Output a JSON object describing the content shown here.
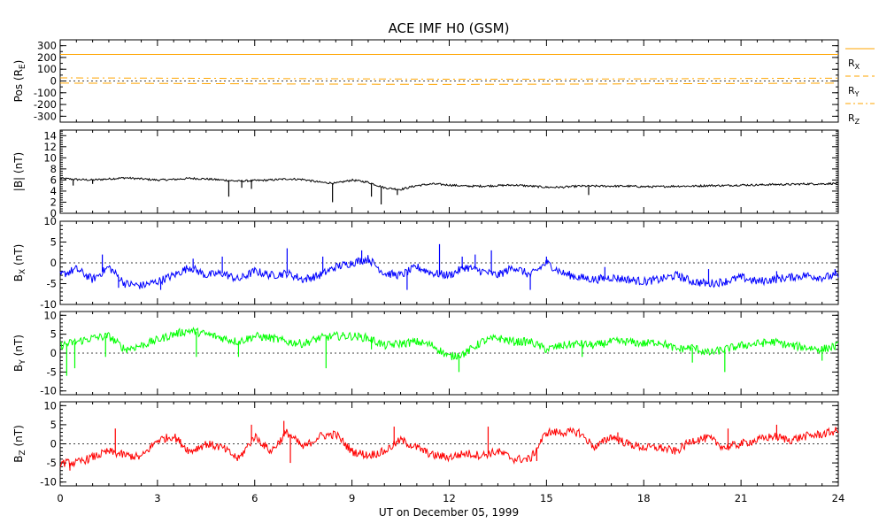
{
  "chart_data": {
    "type": "line",
    "title": "ACE IMF H0 (GSM)",
    "xlabel": "UT on December 05, 1999",
    "xlim": [
      0,
      24
    ],
    "xticks": [
      "0",
      "3",
      "6",
      "9",
      "12",
      "15",
      "18",
      "21",
      "24"
    ],
    "colors": {
      "background": "#ffffff",
      "axes": "#000000",
      "position": "#ffa500",
      "magnitude": "#000000",
      "bx": "#0000ff",
      "by": "#00ff00",
      "bz": "#ff0000"
    },
    "panels": [
      {
        "id": "pos",
        "ylabel": "Pos (RE)",
        "ylabel_main": "Pos (R",
        "ylabel_sub": "E",
        "ylabel_end": ")",
        "ylim": [
          -350,
          350
        ],
        "yticks": [
          "-300",
          "-200",
          "-100",
          "0",
          "100",
          "200",
          "300"
        ],
        "zero_line": true,
        "legend": [
          {
            "name": "RX",
            "main": "R",
            "sub": "X",
            "style": "solid"
          },
          {
            "name": "RY",
            "main": "R",
            "sub": "Y",
            "style": "dashed"
          },
          {
            "name": "RZ",
            "main": "R",
            "sub": "Z",
            "style": "dash-dot"
          }
        ],
        "series": [
          {
            "name": "RX",
            "style": "solid",
            "x": [
              0,
              24
            ],
            "values": [
              226,
              226
            ]
          },
          {
            "name": "RY",
            "style": "dashed",
            "x": [
              0,
              3,
              6,
              9,
              12,
              15,
              18,
              21,
              24
            ],
            "values": [
              -18,
              -20,
              -24,
              -27,
              -29,
              -27,
              -24,
              -21,
              -18
            ]
          },
          {
            "name": "RZ",
            "style": "dash-dot",
            "x": [
              0,
              3,
              6,
              9,
              12,
              15,
              18,
              21,
              24
            ],
            "values": [
              26,
              24,
              21,
              18,
              15,
              15,
              18,
              21,
              24
            ]
          }
        ]
      },
      {
        "id": "bmag",
        "ylabel": "|B| (nT)",
        "ylabel_main": "|B| (nT)",
        "ylim": [
          0,
          15
        ],
        "yticks": [
          "0",
          "2",
          "4",
          "6",
          "8",
          "10",
          "12",
          "14"
        ],
        "zero_line": false,
        "series": [
          {
            "name": "|B|",
            "x": [
              0,
              0.5,
              1,
              1.5,
              2,
              2.5,
              3,
              3.5,
              4,
              4.5,
              5,
              5.5,
              6,
              6.5,
              7,
              7.5,
              8,
              8.5,
              9,
              9.5,
              10,
              10.5,
              11,
              11.5,
              12,
              12.5,
              13,
              13.5,
              14,
              14.5,
              15,
              15.5,
              16,
              16.5,
              17,
              17.5,
              18,
              18.5,
              19,
              19.5,
              20,
              20.5,
              21,
              21.5,
              22,
              22.5,
              23,
              23.5,
              24
            ],
            "values": [
              6.3,
              6.1,
              6.0,
              6.2,
              6.4,
              6.2,
              6.0,
              6.1,
              6.3,
              6.2,
              6.0,
              5.8,
              5.9,
              6.0,
              6.2,
              6.1,
              5.6,
              5.4,
              6.0,
              5.6,
              4.6,
              4.3,
              5.0,
              5.3,
              5.1,
              4.9,
              4.9,
              5.0,
              5.1,
              4.9,
              4.7,
              4.7,
              4.9,
              4.9,
              4.9,
              4.9,
              4.8,
              4.8,
              4.9,
              4.9,
              5.0,
              5.0,
              5.1,
              5.1,
              5.2,
              5.2,
              5.3,
              5.3,
              5.4
            ]
          }
        ],
        "spikes": [
          [
            0.4,
            5.0
          ],
          [
            1.0,
            5.3
          ],
          [
            5.2,
            3.0
          ],
          [
            5.6,
            4.6
          ],
          [
            5.9,
            4.4
          ],
          [
            8.4,
            2.0
          ],
          [
            9.6,
            3.0
          ],
          [
            9.9,
            1.6
          ],
          [
            10.4,
            3.3
          ],
          [
            16.3,
            3.3
          ]
        ]
      },
      {
        "id": "bx",
        "ylabel": "BX (nT)",
        "ylabel_main": "B",
        "ylabel_sub": "X",
        "ylabel_end": " (nT)",
        "ylim": [
          -10,
          10
        ],
        "yticks": [
          "-10",
          "-5",
          "0",
          "5",
          "10"
        ],
        "zero_line": true,
        "series": [
          {
            "name": "BX",
            "x": [
              0,
              0.5,
              1,
              1.5,
              2,
              2.5,
              3,
              3.5,
              4,
              4.5,
              5,
              5.5,
              6,
              6.5,
              7,
              7.5,
              8,
              8.5,
              9,
              9.5,
              10,
              10.5,
              11,
              11.5,
              12,
              12.5,
              13,
              13.5,
              14,
              14.5,
              15,
              15.5,
              16,
              16.5,
              17,
              17.5,
              18,
              18.5,
              19,
              19.5,
              20,
              20.5,
              21,
              21.5,
              22,
              22.5,
              23,
              23.5,
              24
            ],
            "values": [
              -3,
              -1.5,
              -4,
              -1,
              -5,
              -5.5,
              -4.5,
              -3,
              -1,
              -3,
              -2.5,
              -4,
              -2,
              -3,
              -2.5,
              -4,
              -3,
              -1,
              0,
              1,
              -2.5,
              -3,
              -1,
              -2.5,
              -3,
              -1,
              -2,
              -3,
              -1,
              -3,
              0,
              -2.5,
              -3.5,
              -4,
              -3.5,
              -4,
              -4.5,
              -4,
              -3,
              -4.5,
              -5,
              -4.5,
              -3.5,
              -4.5,
              -4,
              -3.5,
              -3,
              -3.5,
              -3
            ]
          }
        ],
        "spikes": [
          [
            1.3,
            2
          ],
          [
            4.1,
            1
          ],
          [
            5.0,
            1.5
          ],
          [
            7.0,
            3.5
          ],
          [
            8.1,
            1.5
          ],
          [
            9.3,
            3
          ],
          [
            11.7,
            4.5
          ],
          [
            12.4,
            1.5
          ],
          [
            12.8,
            2
          ],
          [
            13.3,
            3
          ],
          [
            15.0,
            1.5
          ],
          [
            16.8,
            -1
          ],
          [
            19.1,
            -2.5
          ],
          [
            20.0,
            -1.5
          ],
          [
            22.1,
            -2
          ],
          [
            23.9,
            -1.5
          ],
          [
            1.8,
            -6
          ],
          [
            3.1,
            -6.5
          ],
          [
            10.7,
            -6.5
          ],
          [
            14.5,
            -6.5
          ]
        ]
      },
      {
        "id": "by",
        "ylabel": "BY (nT)",
        "ylabel_main": "B",
        "ylabel_sub": "Y",
        "ylabel_end": " (nT)",
        "ylim": [
          -11,
          11
        ],
        "yticks": [
          "-10",
          "-5",
          "0",
          "5",
          "10"
        ],
        "zero_line": true,
        "series": [
          {
            "name": "BY",
            "x": [
              0,
              0.5,
              1,
              1.5,
              2,
              2.5,
              3,
              3.5,
              4,
              4.5,
              5,
              5.5,
              6,
              6.5,
              7,
              7.5,
              8,
              8.5,
              9,
              9.5,
              10,
              10.5,
              11,
              11.5,
              12,
              12.5,
              13,
              13.5,
              14,
              14.5,
              15,
              15.5,
              16,
              16.5,
              17,
              17.5,
              18,
              18.5,
              19,
              19.5,
              20,
              20.5,
              21,
              21.5,
              22,
              22.5,
              23,
              23.5,
              24
            ],
            "values": [
              2,
              3,
              4,
              4.5,
              1,
              2,
              3.5,
              5,
              6,
              5,
              4,
              3,
              4.5,
              4,
              3,
              2.5,
              4,
              4.5,
              4.5,
              4,
              2,
              2.5,
              3,
              2,
              -1,
              0,
              3,
              4,
              3,
              3,
              1,
              2,
              2.5,
              2,
              3,
              3,
              2.5,
              3,
              1,
              1.5,
              0,
              1,
              2,
              2.5,
              3,
              2,
              1.5,
              1,
              2
            ]
          }
        ],
        "spikes": [
          [
            0.2,
            -6
          ],
          [
            0.45,
            -4
          ],
          [
            1.4,
            -1
          ],
          [
            4.2,
            -1
          ],
          [
            5.5,
            -1
          ],
          [
            8.2,
            -4
          ],
          [
            9.6,
            1
          ],
          [
            12.3,
            -5
          ],
          [
            16.1,
            -1
          ],
          [
            19.5,
            -2.5
          ],
          [
            20.5,
            -5
          ],
          [
            23.5,
            -2
          ]
        ]
      },
      {
        "id": "bz",
        "ylabel": "BZ (nT)",
        "ylabel_main": "B",
        "ylabel_sub": "Z",
        "ylabel_end": " (nT)",
        "ylim": [
          -11,
          11
        ],
        "yticks": [
          "-10",
          "-5",
          "0",
          "5",
          "10"
        ],
        "zero_line": true,
        "series": [
          {
            "name": "BZ",
            "x": [
              0,
              0.5,
              1,
              1.5,
              2,
              2.5,
              3,
              3.5,
              4,
              4.5,
              5,
              5.5,
              6,
              6.5,
              7,
              7.5,
              8,
              8.5,
              9,
              9.5,
              10,
              10.5,
              11,
              11.5,
              12,
              12.5,
              13,
              13.5,
              14,
              14.5,
              15,
              15.5,
              16,
              16.5,
              17,
              17.5,
              18,
              18.5,
              19,
              19.5,
              20,
              20.5,
              21,
              21.5,
              22,
              22.5,
              23,
              23.5,
              24
            ],
            "values": [
              -5,
              -5,
              -3.5,
              -2,
              -3,
              -3.5,
              1,
              2,
              -2,
              0,
              -1,
              -4,
              2,
              -2,
              3,
              -1,
              2,
              2.5,
              -2,
              -3,
              -2,
              1,
              -1,
              -3,
              -3.5,
              -2.5,
              -3,
              -2,
              -4,
              -4,
              3,
              3,
              3,
              -1,
              2,
              0,
              -1,
              -1,
              -2,
              1,
              1.5,
              -1,
              0,
              1,
              2,
              1,
              2,
              2.5,
              3.5
            ]
          }
        ],
        "spikes": [
          [
            0.3,
            -7
          ],
          [
            1.7,
            4
          ],
          [
            5.9,
            5
          ],
          [
            6.9,
            6
          ],
          [
            7.1,
            -5
          ],
          [
            10.3,
            4.5
          ],
          [
            13.2,
            4.5
          ],
          [
            14.7,
            -4.5
          ],
          [
            17.2,
            3
          ],
          [
            20.6,
            4
          ],
          [
            22.1,
            5
          ]
        ]
      }
    ]
  }
}
